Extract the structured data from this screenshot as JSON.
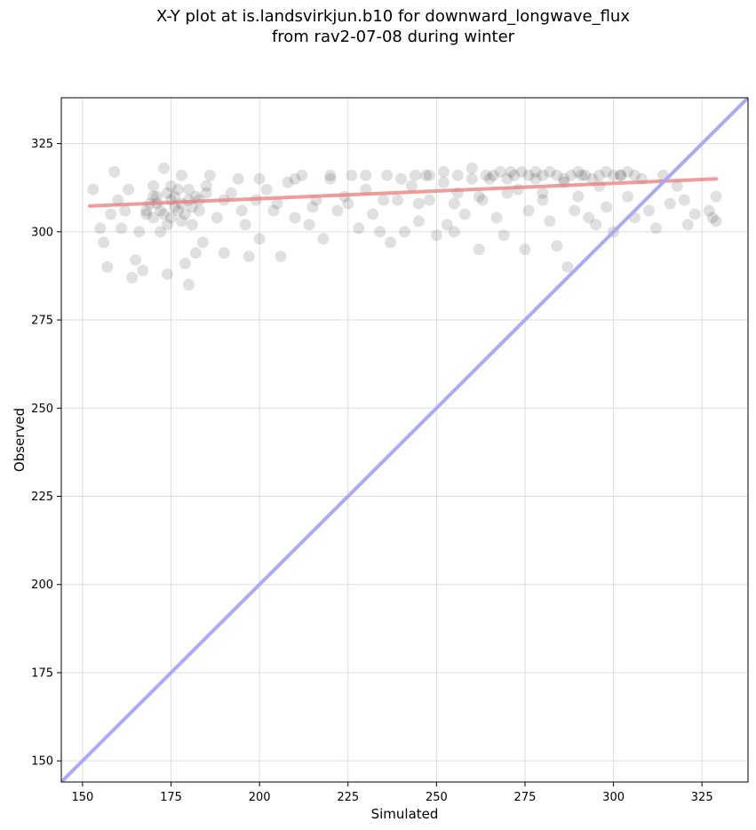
{
  "chart_data": {
    "type": "scatter",
    "title": "X-Y plot at is.landsvirkjun.b10 for downward_longwave_flux",
    "subtitle": "from rav2-07-08 during winter",
    "xlabel": "Simulated",
    "ylabel": "Observed",
    "xlim": [
      144,
      338
    ],
    "ylim": [
      144,
      338
    ],
    "xticks": [
      150,
      175,
      200,
      225,
      250,
      275,
      300,
      325
    ],
    "yticks": [
      150,
      175,
      200,
      225,
      250,
      275,
      300,
      325
    ],
    "grid": true,
    "colors": {
      "points": "#000000",
      "fit_line": "#e87b7b",
      "one_to_one": "#a5a5f5",
      "grid": "#dddddd"
    },
    "series": [
      {
        "type": "scatter",
        "points": [
          [
            153,
            312
          ],
          [
            155,
            301
          ],
          [
            156,
            297
          ],
          [
            157,
            290
          ],
          [
            158,
            305
          ],
          [
            159,
            317
          ],
          [
            160,
            309
          ],
          [
            161,
            301
          ],
          [
            162,
            306
          ],
          [
            163,
            312
          ],
          [
            164,
            287
          ],
          [
            165,
            292
          ],
          [
            166,
            300
          ],
          [
            167,
            289
          ],
          [
            168,
            305
          ],
          [
            169,
            308
          ],
          [
            170,
            313
          ],
          [
            171,
            310
          ],
          [
            172,
            300
          ],
          [
            173,
            318
          ],
          [
            174,
            288
          ],
          [
            175,
            309
          ],
          [
            176,
            307
          ],
          [
            177,
            312
          ],
          [
            178,
            316
          ],
          [
            179,
            291
          ],
          [
            180,
            285
          ],
          [
            181,
            302
          ],
          [
            182,
            294
          ],
          [
            183,
            309
          ],
          [
            184,
            297
          ],
          [
            185,
            311
          ],
          [
            186,
            316
          ],
          [
            188,
            304
          ],
          [
            190,
            294
          ],
          [
            192,
            311
          ],
          [
            194,
            315
          ],
          [
            196,
            302
          ],
          [
            197,
            293
          ],
          [
            199,
            309
          ],
          [
            200,
            298
          ],
          [
            202,
            312
          ],
          [
            204,
            306
          ],
          [
            206,
            293
          ],
          [
            208,
            314
          ],
          [
            210,
            304
          ],
          [
            212,
            316
          ],
          [
            214,
            302
          ],
          [
            216,
            309
          ],
          [
            218,
            298
          ],
          [
            220,
            315
          ],
          [
            222,
            306
          ],
          [
            224,
            310
          ],
          [
            226,
            316
          ],
          [
            228,
            301
          ],
          [
            230,
            312
          ],
          [
            232,
            305
          ],
          [
            234,
            300
          ],
          [
            236,
            316
          ],
          [
            237,
            297
          ],
          [
            239,
            309
          ],
          [
            241,
            300
          ],
          [
            243,
            313
          ],
          [
            245,
            303
          ],
          [
            247,
            316
          ],
          [
            248,
            309
          ],
          [
            250,
            299
          ],
          [
            252,
            314
          ],
          [
            253,
            302
          ],
          [
            255,
            300
          ],
          [
            256,
            311
          ],
          [
            258,
            305
          ],
          [
            260,
            318
          ],
          [
            262,
            295
          ],
          [
            263,
            309
          ],
          [
            265,
            315
          ],
          [
            267,
            304
          ],
          [
            269,
            299
          ],
          [
            271,
            317
          ],
          [
            273,
            312
          ],
          [
            275,
            295
          ],
          [
            276,
            306
          ],
          [
            278,
            317
          ],
          [
            280,
            309
          ],
          [
            282,
            303
          ],
          [
            284,
            296
          ],
          [
            286,
            314
          ],
          [
            287,
            290
          ],
          [
            289,
            306
          ],
          [
            291,
            316
          ],
          [
            293,
            304
          ],
          [
            295,
            302
          ],
          [
            296,
            313
          ],
          [
            298,
            307
          ],
          [
            300,
            300
          ],
          [
            302,
            316
          ],
          [
            304,
            310
          ],
          [
            306,
            304
          ],
          [
            308,
            315
          ],
          [
            310,
            306
          ],
          [
            312,
            301
          ],
          [
            314,
            316
          ],
          [
            316,
            308
          ],
          [
            318,
            313
          ],
          [
            320,
            309
          ],
          [
            321,
            302
          ],
          [
            323,
            305
          ],
          [
            327,
            306
          ],
          [
            328,
            304
          ],
          [
            329,
            303
          ],
          [
            329,
            310
          ],
          [
            168,
            306
          ],
          [
            170,
            304
          ],
          [
            171,
            308
          ],
          [
            172,
            306
          ],
          [
            173,
            305
          ],
          [
            174,
            311
          ],
          [
            175,
            304
          ],
          [
            176,
            310
          ],
          [
            177,
            306
          ],
          [
            178,
            308
          ],
          [
            179,
            305
          ],
          [
            180,
            309
          ],
          [
            181,
            307
          ],
          [
            182,
            310
          ],
          [
            183,
            306
          ],
          [
            170,
            310
          ],
          [
            175,
            313
          ],
          [
            180,
            312
          ],
          [
            185,
            313
          ],
          [
            178,
            303
          ],
          [
            174,
            302
          ],
          [
            266,
            316
          ],
          [
            268,
            317
          ],
          [
            270,
            315
          ],
          [
            272,
            316
          ],
          [
            274,
            317
          ],
          [
            276,
            316
          ],
          [
            278,
            315
          ],
          [
            280,
            316
          ],
          [
            282,
            317
          ],
          [
            284,
            316
          ],
          [
            286,
            315
          ],
          [
            288,
            316
          ],
          [
            290,
            317
          ],
          [
            292,
            316
          ],
          [
            294,
            315
          ],
          [
            296,
            316
          ],
          [
            298,
            317
          ],
          [
            300,
            316
          ],
          [
            302,
            316
          ],
          [
            304,
            317
          ],
          [
            306,
            316
          ],
          [
            240,
            315
          ],
          [
            244,
            316
          ],
          [
            248,
            316
          ],
          [
            252,
            317
          ],
          [
            256,
            316
          ],
          [
            260,
            315
          ],
          [
            264,
            316
          ],
          [
            262,
            310
          ],
          [
            270,
            311
          ],
          [
            280,
            311
          ],
          [
            290,
            310
          ],
          [
            255,
            308
          ],
          [
            245,
            308
          ],
          [
            235,
            309
          ],
          [
            225,
            308
          ],
          [
            215,
            307
          ],
          [
            205,
            308
          ],
          [
            195,
            306
          ],
          [
            190,
            309
          ],
          [
            200,
            315
          ],
          [
            210,
            315
          ],
          [
            220,
            316
          ],
          [
            230,
            316
          ]
        ]
      },
      {
        "type": "line",
        "name": "fit",
        "points": [
          [
            152,
            307.3
          ],
          [
            329,
            315.0
          ]
        ]
      },
      {
        "type": "line",
        "name": "1:1",
        "points": [
          [
            144,
            144
          ],
          [
            338,
            338
          ]
        ]
      }
    ]
  }
}
